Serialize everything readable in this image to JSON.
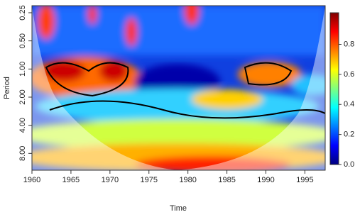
{
  "chart_data": {
    "type": "wavelet",
    "xlabel": "Time",
    "ylabel": "Period",
    "xlim": [
      1960,
      1997.6
    ],
    "xticks": [
      1960,
      1965,
      1970,
      1975,
      1980,
      1985,
      1990,
      1995
    ],
    "ylim": [
      0.21,
      12.1
    ],
    "log_y": true,
    "y_reversed": true,
    "yticks": [
      {
        "value": 0.25,
        "label": "0.25"
      },
      {
        "value": 0.5,
        "label": "0.50"
      },
      {
        "value": 1,
        "label": "1.00"
      },
      {
        "value": 2,
        "label": "2.00"
      },
      {
        "value": 4,
        "label": "4.00"
      },
      {
        "value": 8,
        "label": "8.00"
      }
    ],
    "colorbar_lim": [
      0,
      1.01
    ],
    "colorbar_ticks": [
      {
        "value": 0,
        "label": "0.0"
      },
      0.2,
      0.4,
      0.6,
      0.8
    ],
    "colorscale": [
      "#00007f",
      "#0000ff",
      "#007fff",
      "#00ffff",
      "#7fff7f",
      "#ffff00",
      "#ff7f00",
      "#ff0000",
      "#7f0000"
    ]
  }
}
